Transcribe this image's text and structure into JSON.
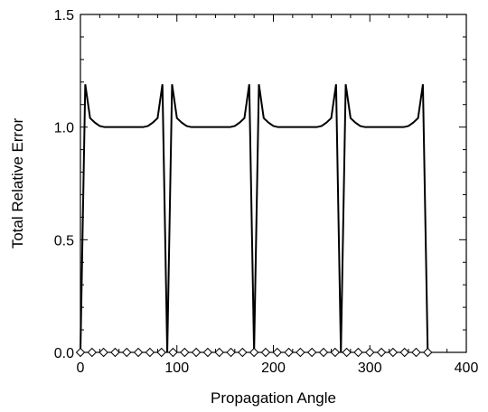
{
  "chart_data": {
    "type": "line",
    "title": "",
    "xlabel": "Propagation Angle",
    "ylabel": "Total Relative Error",
    "xlim": [
      0,
      400
    ],
    "ylim": [
      0,
      1.5
    ],
    "xticks": [
      0,
      100,
      200,
      300,
      400
    ],
    "xtick_labels": [
      "0",
      "100",
      "200",
      "300",
      "400"
    ],
    "yticks": [
      0.0,
      0.5,
      1.0,
      1.5
    ],
    "ytick_labels": [
      "0.0",
      "0.5",
      "1.0",
      "1.5"
    ],
    "grid": false,
    "legend": "none",
    "series": [
      {
        "style": "line",
        "color": "#000000",
        "x": [
          0,
          5,
          10,
          15,
          20,
          25,
          30,
          35,
          40,
          45,
          50,
          55,
          60,
          65,
          70,
          75,
          80,
          85,
          90,
          95,
          100,
          105,
          110,
          115,
          120,
          125,
          130,
          135,
          140,
          145,
          150,
          155,
          160,
          165,
          170,
          175,
          180,
          185,
          190,
          195,
          200,
          205,
          210,
          215,
          220,
          225,
          230,
          235,
          240,
          245,
          250,
          255,
          260,
          265,
          270,
          275,
          280,
          285,
          290,
          295,
          300,
          305,
          310,
          315,
          320,
          325,
          330,
          335,
          340,
          345,
          350,
          355,
          360
        ],
        "y": [
          0.0,
          1.19,
          1.04,
          1.02,
          1.005,
          1.0,
          1.0,
          1.0,
          1.0,
          1.0,
          1.0,
          1.0,
          1.0,
          1.0,
          1.005,
          1.02,
          1.04,
          1.19,
          0.0,
          1.19,
          1.04,
          1.02,
          1.005,
          1.0,
          1.0,
          1.0,
          1.0,
          1.0,
          1.0,
          1.0,
          1.0,
          1.0,
          1.005,
          1.02,
          1.04,
          1.19,
          0.0,
          1.19,
          1.04,
          1.02,
          1.005,
          1.0,
          1.0,
          1.0,
          1.0,
          1.0,
          1.0,
          1.0,
          1.0,
          1.0,
          1.005,
          1.02,
          1.04,
          1.19,
          0.0,
          1.19,
          1.04,
          1.02,
          1.005,
          1.0,
          1.0,
          1.0,
          1.0,
          1.0,
          1.0,
          1.0,
          1.0,
          1.0,
          1.005,
          1.02,
          1.04,
          1.19,
          0.0
        ]
      },
      {
        "style": "markers",
        "marker": "diamond",
        "color": "#000000",
        "x": [
          0,
          12,
          24,
          36,
          48,
          60,
          72,
          84,
          96,
          108,
          120,
          132,
          144,
          156,
          168,
          180,
          192,
          204,
          216,
          228,
          240,
          252,
          264,
          276,
          288,
          300,
          312,
          324,
          336,
          348,
          360
        ],
        "y": [
          0,
          0,
          0,
          0,
          0,
          0,
          0,
          0,
          0,
          0,
          0,
          0,
          0,
          0,
          0,
          0,
          0,
          0,
          0,
          0,
          0,
          0,
          0,
          0,
          0,
          0,
          0,
          0,
          0,
          0,
          0
        ]
      }
    ]
  }
}
